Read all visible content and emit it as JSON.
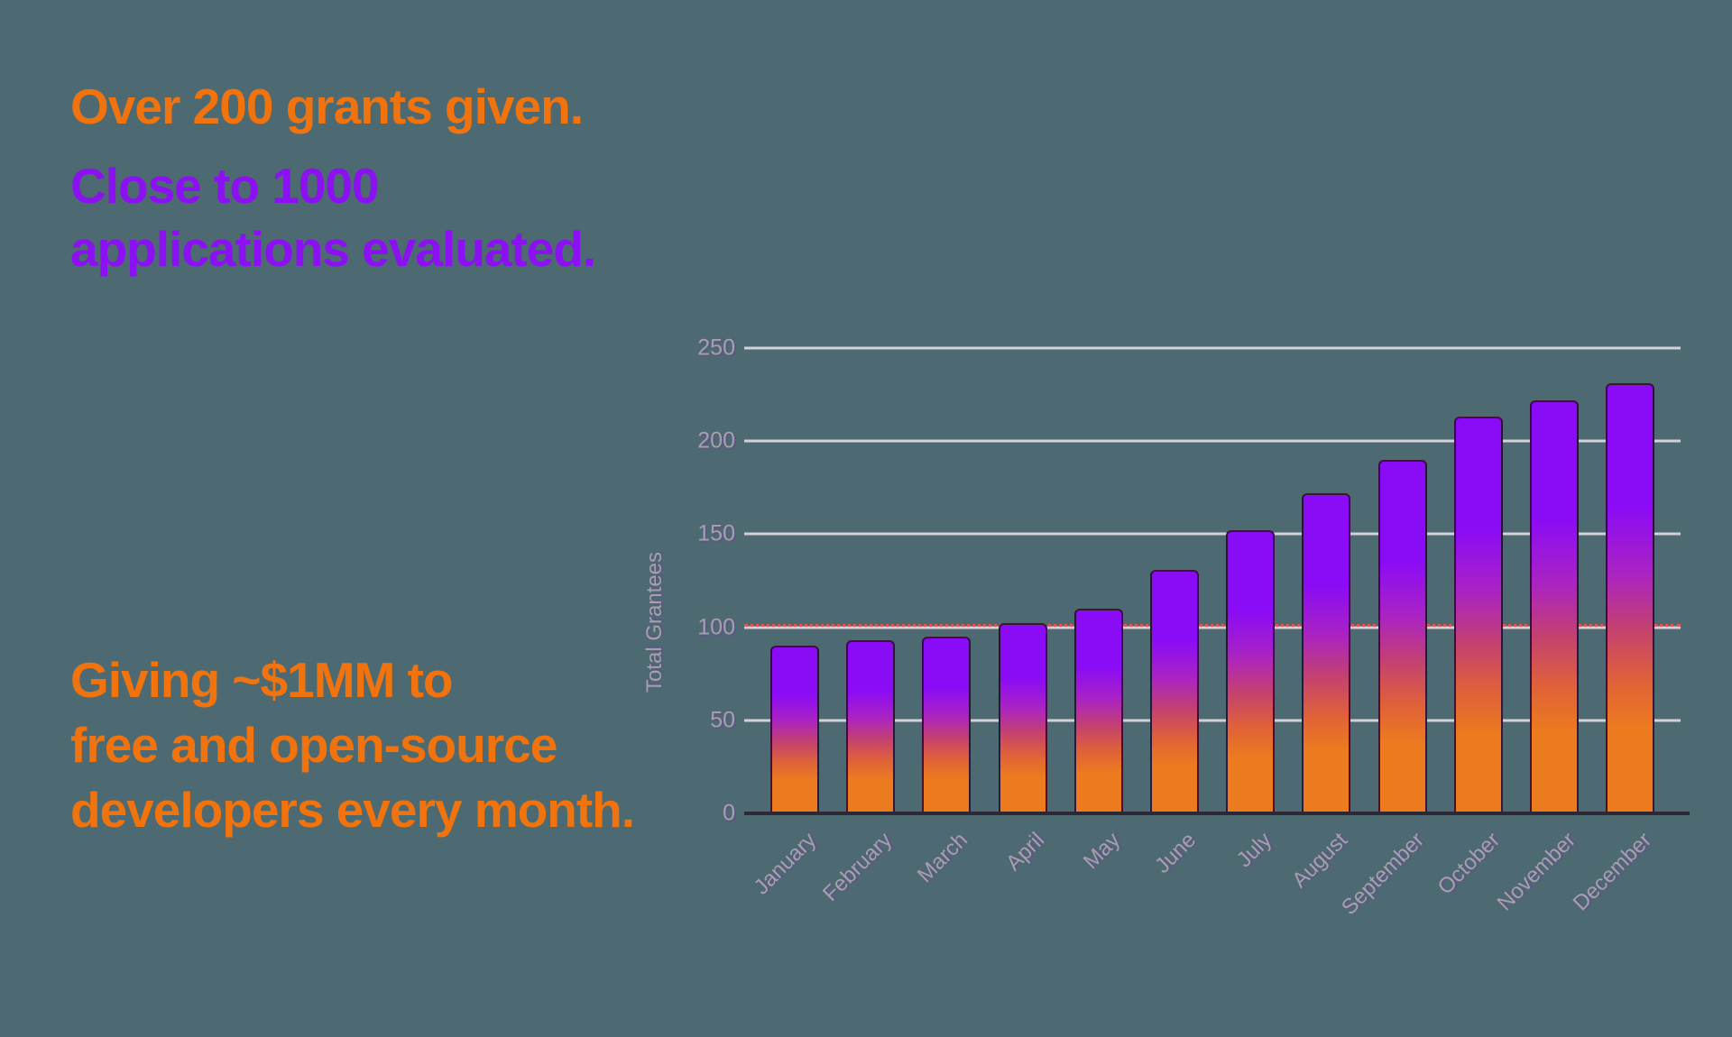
{
  "page": {
    "background": "#4D6971"
  },
  "hero": {
    "line1": {
      "text": "Over 200 grants given.",
      "color": "#F1730D"
    },
    "line2": {
      "text": "Close to 1000 applications evaluated.",
      "color": "#8B10F2"
    }
  },
  "footer_message": {
    "color": "#F1730D",
    "lines": [
      "Giving ~$1MM to",
      "free and open-source",
      "developers every month."
    ]
  },
  "chart_data": {
    "type": "bar",
    "title": "",
    "xlabel": "",
    "ylabel": "Total Grantees",
    "categories": [
      "January",
      "February",
      "March",
      "April",
      "May",
      "June",
      "July",
      "August",
      "September",
      "October",
      "November",
      "December"
    ],
    "values": [
      90,
      93,
      95,
      102,
      110,
      131,
      152,
      172,
      190,
      213,
      222,
      231
    ],
    "ylim": [
      0,
      250
    ],
    "yticks": [
      0,
      50,
      100,
      150,
      200,
      250
    ],
    "grid": true,
    "legend_position": "none",
    "annotation_line": {
      "y": 100,
      "style": "dotted",
      "color": "#DD5A5A"
    },
    "colors": {
      "gridline": "#D5D1D8",
      "axis_baseline": "#2E2834",
      "tick_label": "#A5A0AC",
      "bar_gradient": [
        {
          "color": "#8A0BF6",
          "pos": 0
        },
        {
          "color": "#8A0BF6",
          "pos": 28
        },
        {
          "color": "#AA23C3",
          "pos": 44
        },
        {
          "color": "#C4416F",
          "pos": 57
        },
        {
          "color": "#DF6139",
          "pos": 69
        },
        {
          "color": "#EC7A1F",
          "pos": 80
        },
        {
          "color": "#EC7A1F",
          "pos": 100
        }
      ]
    }
  }
}
